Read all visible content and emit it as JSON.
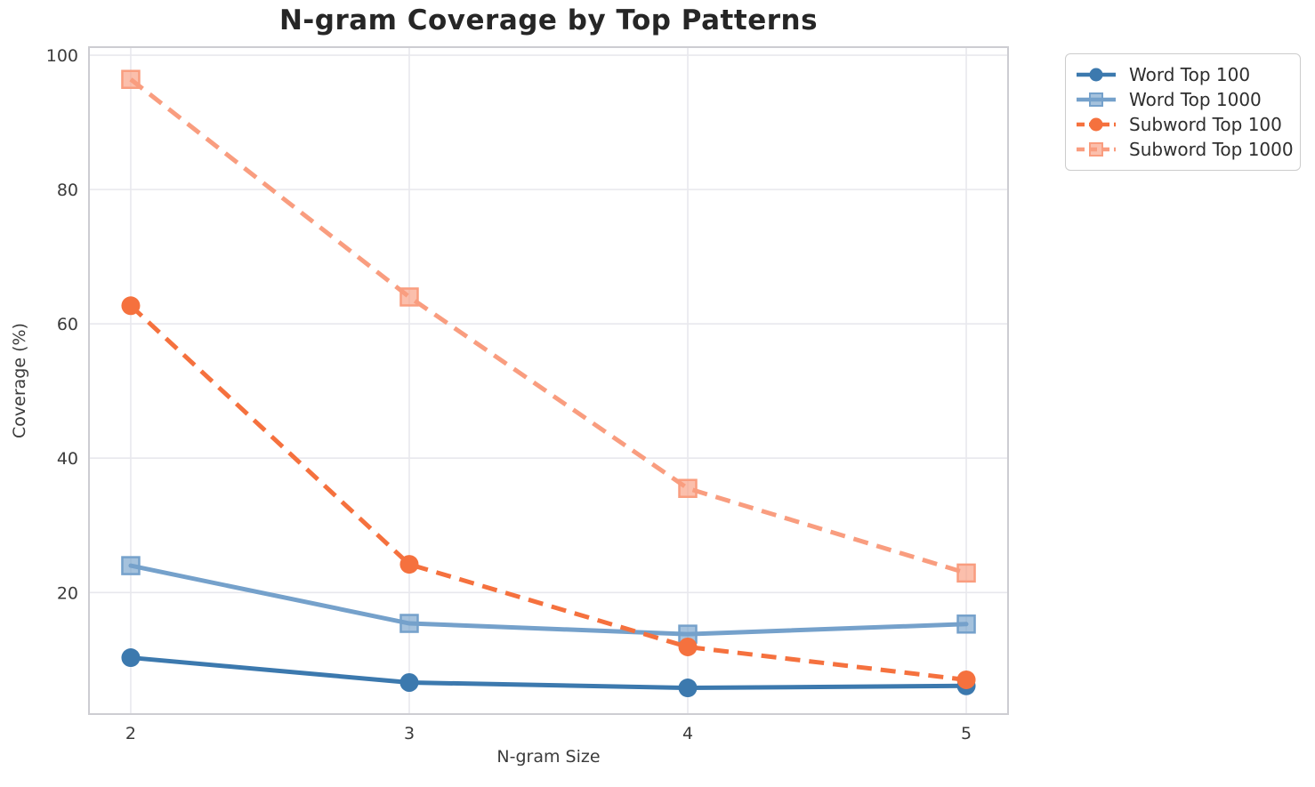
{
  "title": "N-gram Coverage by Top Patterns",
  "chart_data": {
    "type": "line",
    "title": "N-gram Coverage by Top Patterns",
    "xlabel": "N-gram Size",
    "ylabel": "Coverage (%)",
    "x": [
      2,
      3,
      4,
      5
    ],
    "xticks": [
      2,
      3,
      4,
      5
    ],
    "yticks": [
      20,
      40,
      60,
      80,
      100
    ],
    "xlim": [
      1.85,
      5.15
    ],
    "ylim": [
      1.9,
      101.2
    ],
    "grid": true,
    "legend_position": "outside-top-right",
    "series": [
      {
        "name": "Word Top 100",
        "color": "#3c79ae",
        "linestyle": "solid",
        "marker": "circle",
        "values": [
          10.3,
          6.6,
          5.8,
          6.1
        ]
      },
      {
        "name": "Word Top 1000",
        "color": "#75a1cb",
        "linestyle": "solid",
        "marker": "square",
        "values": [
          24.0,
          15.4,
          13.8,
          15.3
        ]
      },
      {
        "name": "Subword Top 100",
        "color": "#f5713e",
        "linestyle": "dashed",
        "marker": "circle",
        "values": [
          62.7,
          24.2,
          11.9,
          7.0
        ]
      },
      {
        "name": "Subword Top 1000",
        "color": "#f99d7f",
        "linestyle": "dashed",
        "marker": "square",
        "values": [
          96.4,
          64.0,
          35.5,
          22.9
        ]
      }
    ]
  },
  "colors": {
    "background": "#ffffff",
    "grid": "#e8e8ed",
    "spine": "#cdcdd2",
    "title_text": "#262626",
    "tick_text": "#3b3b3b",
    "legend_border": "#cccccc",
    "legend_text": "#2e2e2e"
  }
}
